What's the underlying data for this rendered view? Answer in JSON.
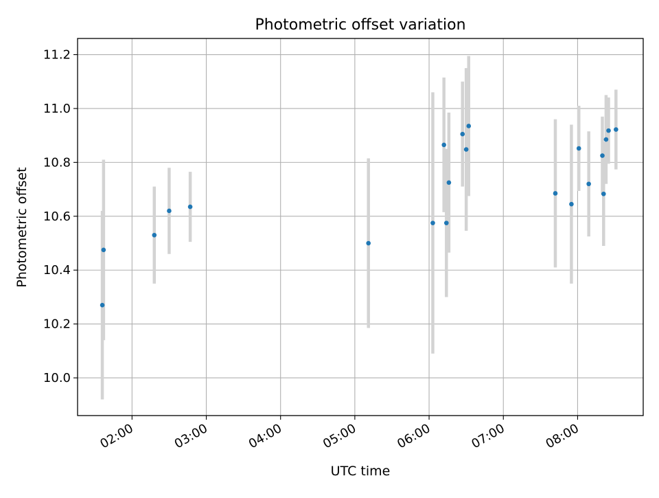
{
  "chart_data": {
    "type": "scatter",
    "title": "Photometric offset variation",
    "xlabel": "UTC time",
    "ylabel": "Photometric offset",
    "x_axis_type": "time",
    "x_unit": "hours UTC",
    "xlim": [
      "01:16",
      "08:53"
    ],
    "ylim": [
      9.86,
      11.26
    ],
    "x_ticks": [
      "02:00",
      "03:00",
      "04:00",
      "05:00",
      "06:00",
      "07:00",
      "08:00"
    ],
    "y_ticks": [
      "10.0",
      "10.2",
      "10.4",
      "10.6",
      "10.8",
      "11.0",
      "11.2"
    ],
    "grid": true,
    "marker_color": "#1f77b4",
    "errorbar_color": "#d3d3d3",
    "series": [
      {
        "points": [
          {
            "x": "01:36",
            "y": 10.27,
            "yerr": 0.35
          },
          {
            "x": "01:37",
            "y": 10.475,
            "yerr": 0.335
          },
          {
            "x": "02:18",
            "y": 10.53,
            "yerr": 0.18
          },
          {
            "x": "02:30",
            "y": 10.62,
            "yerr": 0.16
          },
          {
            "x": "02:47",
            "y": 10.635,
            "yerr": 0.13
          },
          {
            "x": "05:11",
            "y": 10.5,
            "yerr": 0.315
          },
          {
            "x": "06:03",
            "y": 10.575,
            "yerr": 0.485
          },
          {
            "x": "06:12",
            "y": 10.865,
            "yerr": 0.25
          },
          {
            "x": "06:14",
            "y": 10.575,
            "yerr": 0.275
          },
          {
            "x": "06:16",
            "y": 10.725,
            "yerr": 0.26
          },
          {
            "x": "06:27",
            "y": 10.905,
            "yerr": 0.195
          },
          {
            "x": "06:30",
            "y": 10.848,
            "yerr": 0.302
          },
          {
            "x": "06:32",
            "y": 10.935,
            "yerr": 0.26
          },
          {
            "x": "07:42",
            "y": 10.685,
            "yerr": 0.275
          },
          {
            "x": "07:55",
            "y": 10.645,
            "yerr": 0.295
          },
          {
            "x": "08:01",
            "y": 10.852,
            "yerr": 0.158
          },
          {
            "x": "08:09",
            "y": 10.72,
            "yerr": 0.195
          },
          {
            "x": "08:20",
            "y": 10.825,
            "yerr": 0.145
          },
          {
            "x": "08:21",
            "y": 10.683,
            "yerr": 0.193
          },
          {
            "x": "08:23",
            "y": 10.885,
            "yerr": 0.165
          },
          {
            "x": "08:25",
            "y": 10.918,
            "yerr": 0.123
          },
          {
            "x": "08:31",
            "y": 10.922,
            "yerr": 0.148
          }
        ]
      }
    ]
  }
}
